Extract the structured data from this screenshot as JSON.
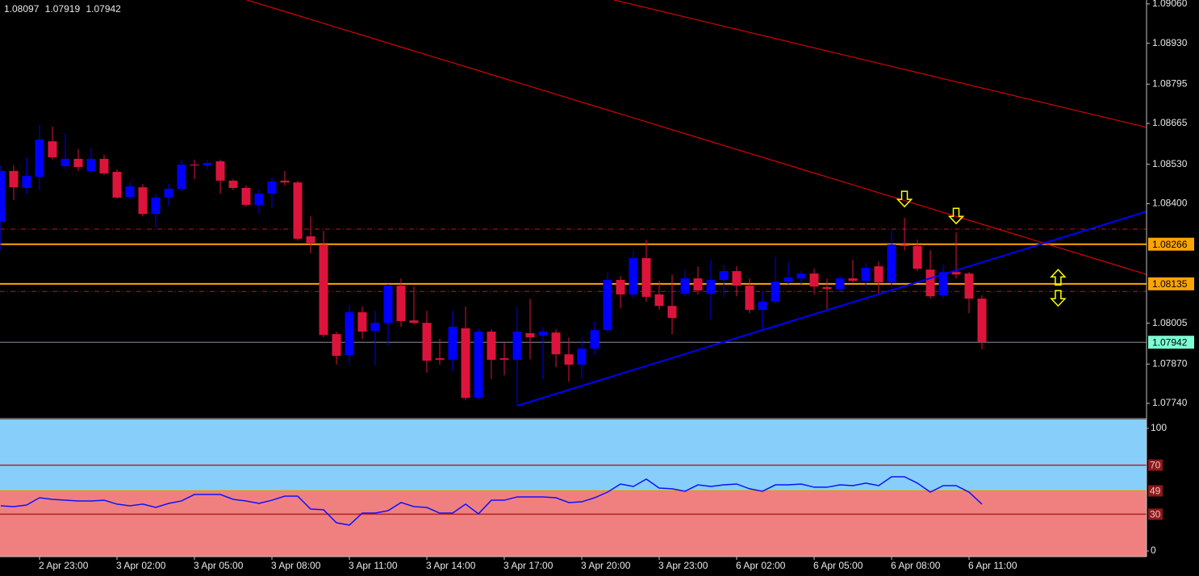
{
  "chart_data": [
    {
      "type": "candlestick",
      "categories": [
        null,
        null,
        null,
        "2 Apr 23:00",
        null,
        null,
        null,
        null,
        null,
        "3 Apr 02:00",
        null,
        null,
        null,
        null,
        null,
        "3 Apr 05:00",
        null,
        null,
        null,
        null,
        null,
        "3 Apr 08:00",
        null,
        null,
        null,
        null,
        null,
        "3 Apr 11:00",
        null,
        null,
        null,
        null,
        null,
        "3 Apr 14:00",
        null,
        null,
        null,
        null,
        null,
        "3 Apr 17:00",
        null,
        null,
        null,
        null,
        null,
        "3 Apr 20:00",
        null,
        null,
        null,
        null,
        null,
        "3 Apr 23:00",
        null,
        null,
        null,
        null,
        null,
        "6 Apr 02:00",
        null,
        null,
        null,
        null,
        null,
        "6 Apr 05:00",
        null,
        null,
        null,
        null,
        null,
        "6 Apr 08:00",
        null,
        null,
        null,
        null,
        null,
        "6 Apr 11:00",
        null
      ],
      "open": [
        1.0834,
        1.08508,
        1.08452,
        1.08489,
        1.08606,
        1.08524,
        1.08548,
        1.08508,
        1.08548,
        1.08505,
        1.08422,
        1.08454,
        1.08366,
        1.0842,
        1.08449,
        1.08529,
        1.08526,
        1.0854,
        1.08476,
        1.08452,
        1.08396,
        1.08433,
        1.08476,
        1.0847,
        1.08292,
        1.08265,
        1.07969,
        1.079,
        1.08041,
        1.0798,
        1.08006,
        1.08129,
        1.08014,
        1.08006,
        1.07889,
        1.07884,
        1.07988,
        1.07758,
        1.07977,
        1.07889,
        1.07884,
        1.07972,
        1.07964,
        1.07974,
        1.07902,
        1.07868,
        1.07921,
        1.07982,
        1.08148,
        1.081,
        1.0822,
        1.081,
        1.08062,
        1.08102,
        1.08153,
        1.08102,
        1.08148,
        1.08177,
        1.08129,
        1.08049,
        1.08076,
        1.08142,
        1.08153,
        1.08169,
        1.08124,
        1.08118,
        1.08153,
        1.08145,
        1.08193,
        1.0814,
        1.08265,
        1.0826,
        1.08182,
        1.08097,
        1.08174,
        1.08169,
        1.08086
      ],
      "high": [
        1.08526,
        1.08526,
        1.08553,
        1.0866,
        1.08654,
        1.08633,
        1.0858,
        1.08585,
        1.08561,
        1.08513,
        1.0847,
        1.08465,
        1.08433,
        1.08465,
        1.08545,
        1.08545,
        1.08545,
        1.08545,
        1.08481,
        1.0846,
        1.08449,
        1.08486,
        1.08508,
        1.08476,
        1.08358,
        1.0831,
        1.07977,
        1.08065,
        1.0806,
        1.08046,
        1.08134,
        1.08153,
        1.08126,
        1.08046,
        1.07953,
        1.08046,
        1.0806,
        1.07988,
        1.07985,
        1.0794,
        1.0806,
        1.08086,
        1.07993,
        1.07985,
        1.07958,
        1.07958,
        1.08012,
        1.08172,
        1.08161,
        1.08246,
        1.08281,
        1.08145,
        1.08166,
        1.0818,
        1.08193,
        1.08214,
        1.08198,
        1.08193,
        1.08153,
        1.08108,
        1.08225,
        1.08206,
        1.08177,
        1.08185,
        1.08153,
        1.08161,
        1.08214,
        1.08204,
        1.08209,
        1.08313,
        1.08353,
        1.08281,
        1.08246,
        1.08198,
        1.08305,
        1.08174,
        1.08097
      ],
      "low": [
        1.08246,
        1.08412,
        1.08433,
        1.08444,
        1.08545,
        1.08513,
        1.08508,
        1.085,
        1.08494,
        1.08417,
        1.08414,
        1.08358,
        1.08321,
        1.08393,
        1.08441,
        1.08481,
        1.08513,
        1.08433,
        1.08444,
        1.0839,
        1.08366,
        1.08385,
        1.0846,
        1.08278,
        1.08236,
        1.07958,
        1.07868,
        1.07868,
        1.07953,
        1.07865,
        1.07932,
        1.07993,
        1.08001,
        1.07841,
        1.07868,
        1.07846,
        1.0775,
        1.0775,
        1.0782,
        1.07833,
        1.07732,
        1.07886,
        1.0782,
        1.0786,
        1.07812,
        1.0782,
        1.079,
        1.07974,
        1.08054,
        1.08086,
        1.08076,
        1.08049,
        1.07969,
        1.08094,
        1.081,
        1.08017,
        1.08092,
        1.08094,
        1.08038,
        1.07985,
        1.08068,
        1.08134,
        1.08134,
        1.081,
        1.08052,
        1.08108,
        1.0814,
        1.08124,
        1.08102,
        1.08113,
        1.08246,
        1.08177,
        1.08086,
        1.08086,
        1.08153,
        1.08038,
        1.07919
      ],
      "close": [
        1.08508,
        1.08454,
        1.08492,
        1.08612,
        1.08553,
        1.08548,
        1.08521,
        1.08548,
        1.085,
        1.0842,
        1.08457,
        1.08366,
        1.0842,
        1.08449,
        1.08529,
        1.08526,
        1.08534,
        1.08476,
        1.08452,
        1.08396,
        1.08433,
        1.08473,
        1.0847,
        1.08284,
        1.0827,
        1.07966,
        1.07897,
        1.08041,
        1.07977,
        1.08006,
        1.08129,
        1.08012,
        1.08006,
        1.07881,
        1.07884,
        1.07993,
        1.07758,
        1.07977,
        1.07884,
        1.07884,
        1.07977,
        1.07958,
        1.07977,
        1.07902,
        1.07868,
        1.07921,
        1.07982,
        1.08148,
        1.081,
        1.0822,
        1.08092,
        1.08062,
        1.08022,
        1.08153,
        1.08113,
        1.08148,
        1.08177,
        1.08129,
        1.08049,
        1.08076,
        1.08142,
        1.08156,
        1.08169,
        1.08126,
        1.08118,
        1.08153,
        1.08145,
        1.08188,
        1.0814,
        1.08265,
        1.0826,
        1.08185,
        1.08094,
        1.08174,
        1.08166,
        1.08086,
        1.07942
      ],
      "up_color": "#0000ff",
      "down_color": "#dc143c",
      "ylim": [
        1.07692,
        1.09073
      ],
      "yticks": [
        {
          "value": 1.0906,
          "label": "1.09060"
        },
        {
          "value": 1.0893,
          "label": "1.08930"
        },
        1.08795,
        1.08665,
        {
          "value": 1.0853,
          "label": "1.08530"
        },
        {
          "value": 1.084,
          "label": "1.08400"
        },
        1.08005,
        {
          "value": 1.0787,
          "label": "1.07870"
        },
        {
          "value": 1.0774,
          "label": "1.07740"
        }
      ],
      "hlines": [
        {
          "value": 1.08266,
          "color": "#ffa500"
        },
        {
          "value": 1.08135,
          "color": "#ffa500"
        }
      ],
      "dashed_lines": [
        {
          "value": 1.08316,
          "color": "#c0141c"
        },
        {
          "value": 1.0811,
          "color": "#c0141c"
        }
      ],
      "trendlines": [
        {
          "from": [
            19.06,
            1.09073
          ],
          "to": [
            88.75,
            1.08166
          ],
          "color": "#ff0000"
        },
        {
          "from": [
            47.5,
            1.09073
          ],
          "to": [
            88.75,
            1.08652
          ],
          "color": "#ff0000"
        },
        {
          "from": [
            40,
            1.07732
          ],
          "to": [
            88.75,
            1.08374
          ],
          "color": "#0000ff"
        }
      ],
      "arrows": [
        {
          "at": [
            70,
            1.08414
          ],
          "direction": "down"
        },
        {
          "at": [
            74,
            1.08358
          ],
          "direction": "down"
        },
        {
          "at": [
            81.9,
            1.08158
          ],
          "direction": "up"
        },
        {
          "at": [
            81.9,
            1.08086
          ],
          "direction": "down"
        }
      ],
      "arrow_color": "#ffff00"
    },
    {
      "type": "line",
      "series": [
        {
          "color": "#1010ff",
          "values": [
            36.8,
            36.2,
            37.5,
            43.4,
            42.1,
            41.4,
            40.8,
            40.8,
            41.4,
            38.2,
            36.8,
            38.2,
            35.5,
            38.8,
            40.8,
            46.1,
            46.1,
            46.1,
            42.1,
            40.8,
            38.8,
            41.4,
            44.7,
            44.7,
            34.2,
            33.6,
            23.0,
            21.1,
            30.9,
            30.9,
            32.9,
            39.5,
            36.2,
            35.5,
            30.9,
            30.9,
            38.2,
            30.3,
            41.4,
            41.4,
            44.1,
            44.1,
            44.1,
            43.4,
            39.5,
            40.1,
            43.4,
            48.0,
            54.6,
            52.6,
            58.6,
            51.3,
            50.7,
            48.7,
            53.9,
            52.6,
            53.9,
            54.6,
            50.7,
            48.7,
            53.9,
            53.9,
            54.6,
            52.0,
            52.0,
            53.9,
            53.3,
            55.3,
            53.3,
            60.5,
            60.5,
            55.3,
            48.0,
            53.3,
            53.3,
            48.0,
            38.2
          ]
        }
      ],
      "ylim": [
        -4.6,
        107.2
      ],
      "yticks": [
        100,
        0
      ],
      "levels": [
        {
          "value": 70,
          "color": "#b22222"
        },
        {
          "value": 49,
          "color": "#ff8c00"
        },
        {
          "value": 30,
          "color": "#b22222"
        }
      ],
      "zone_colors": [
        "#87cefa",
        "#f08080"
      ]
    }
  ]
}
